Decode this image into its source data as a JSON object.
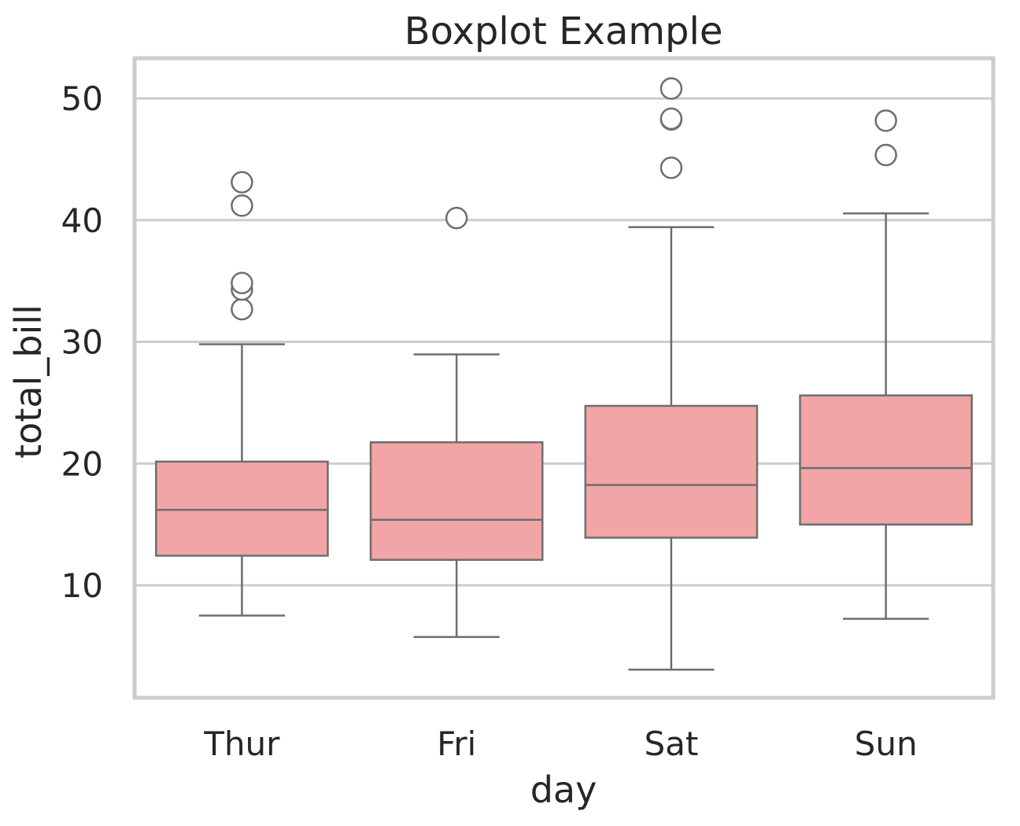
{
  "chart_data": {
    "type": "boxplot",
    "title": "Boxplot Example",
    "xlabel": "day",
    "ylabel": "total_bill",
    "categories": [
      "Thur",
      "Fri",
      "Sat",
      "Sun"
    ],
    "yticks": [
      10,
      20,
      30,
      40,
      50
    ],
    "ylim": [
      0.76,
      53.3
    ],
    "grid": "horizontal",
    "box_color": "#f1a5a6",
    "line_color": "#6e6e6e",
    "grid_color": "#cccccc",
    "boxes": [
      {
        "category": "Thur",
        "whisker_low": 7.51,
        "q1": 12.43,
        "median": 16.2,
        "q3": 20.16,
        "whisker_high": 29.8,
        "fliers": [
          32.68,
          34.3,
          34.83,
          41.19,
          43.11
        ]
      },
      {
        "category": "Fri",
        "whisker_low": 5.75,
        "q1": 12.09,
        "median": 15.38,
        "q3": 21.75,
        "whisker_high": 28.97,
        "fliers": [
          40.17
        ]
      },
      {
        "category": "Sat",
        "whisker_low": 3.07,
        "q1": 13.91,
        "median": 18.24,
        "q3": 24.74,
        "whisker_high": 39.42,
        "fliers": [
          44.3,
          48.27,
          48.33,
          50.81
        ]
      },
      {
        "category": "Sun",
        "whisker_low": 7.25,
        "q1": 14.99,
        "median": 19.63,
        "q3": 25.6,
        "whisker_high": 40.55,
        "fliers": [
          45.35,
          48.17
        ]
      }
    ]
  }
}
